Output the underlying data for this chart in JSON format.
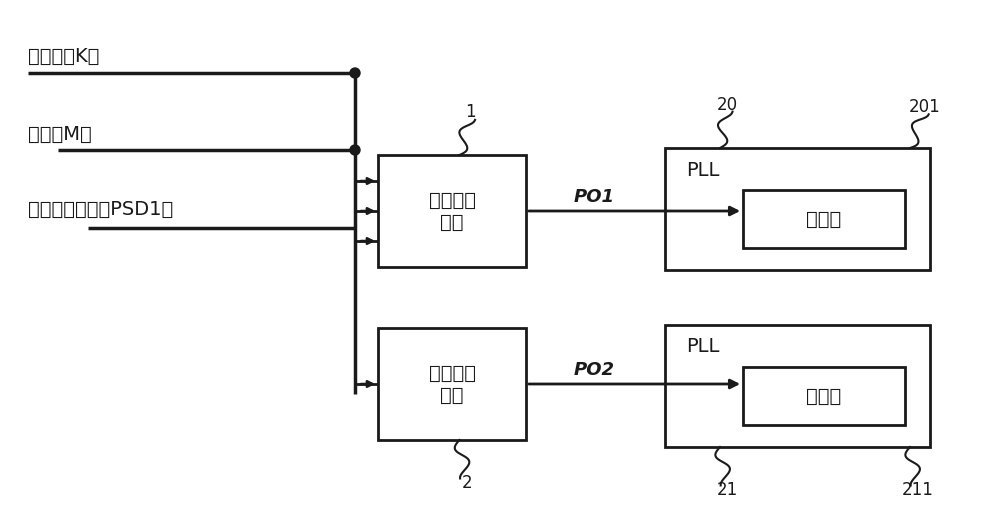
{
  "labels": {
    "fen_shu": "分数値（K）",
    "mo_shu": "模数（M）",
    "xiang_wei": "相位设定信号（PSD1）",
    "mai_chong": "脉冲移位\n电路",
    "ji_zhun": "基准脉冲\n电路",
    "PO1": "PO1",
    "PO2": "PO2",
    "PLL1": "PLL",
    "PLL2": "PLL",
    "fen_pin1": "分频器",
    "fen_pin2": "分频器",
    "label_1": "1",
    "label_2": "2",
    "label_20": "20",
    "label_201": "201",
    "label_21": "21",
    "label_211": "211"
  },
  "figsize": [
    10.0,
    5.27
  ],
  "dpi": 100,
  "line_color": "#1a1a1a",
  "text_color": "#1a1a1a"
}
